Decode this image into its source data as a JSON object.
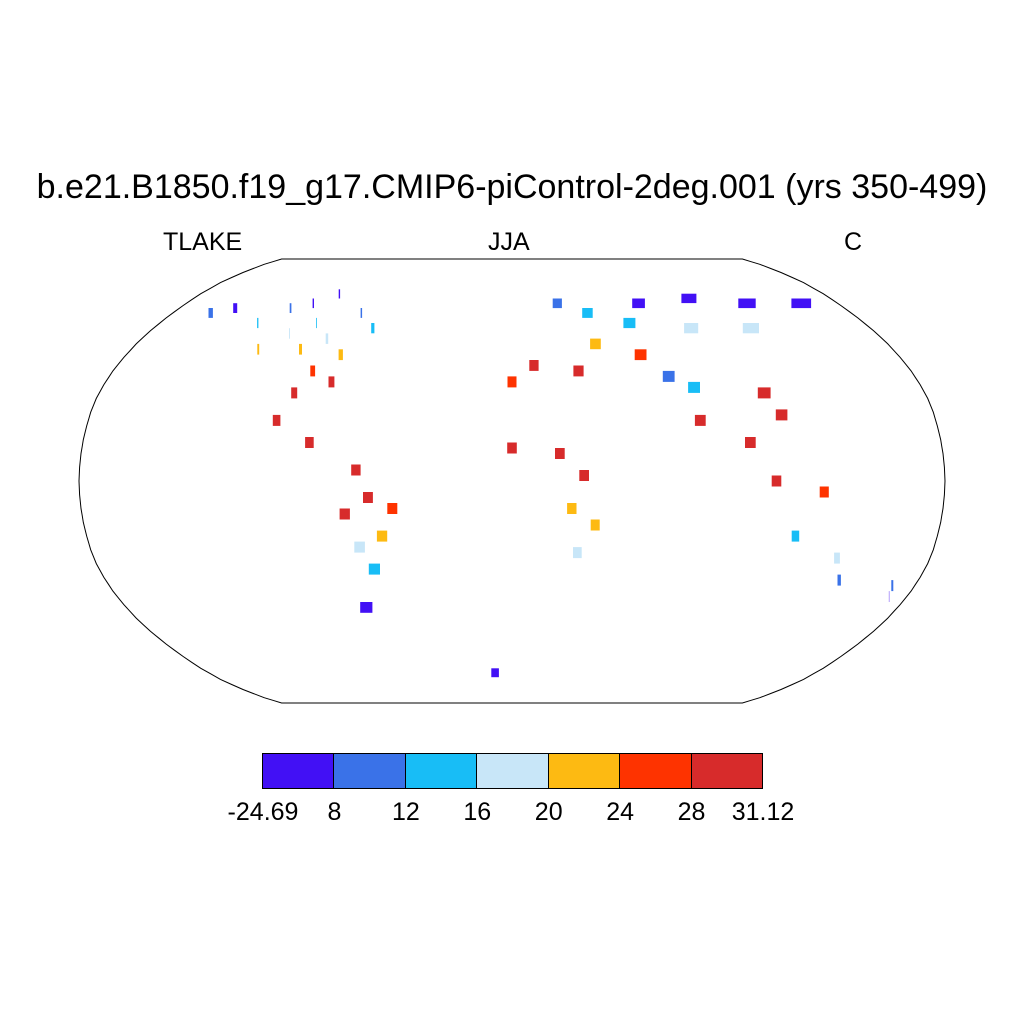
{
  "title": "b.e21.B1850.f19_g17.CMIP6-piControl-2deg.001 (yrs 350-499)",
  "left_label": "TLAKE",
  "center_label": "JJA",
  "right_label": "C",
  "colorbar": {
    "colors": [
      "#4210f5",
      "#3a72e8",
      "#18bdf6",
      "#c8e6f8",
      "#fdba12",
      "#fe3300",
      "#d72b2b"
    ],
    "tick_labels": [
      "-24.69",
      "8",
      "12",
      "16",
      "20",
      "24",
      "28",
      "31.12"
    ]
  },
  "map": {
    "projection": "robinson",
    "cells": [
      {
        "lon": -100,
        "lat": 70,
        "c": 0
      },
      {
        "lon": -110,
        "lat": 66,
        "c": 0
      },
      {
        "lon": -90,
        "lat": 68,
        "c": 0
      },
      {
        "lon": -120,
        "lat": 64,
        "c": 1
      },
      {
        "lon": -80,
        "lat": 62,
        "c": 1
      },
      {
        "lon": -150,
        "lat": 64,
        "c": 0
      },
      {
        "lon": -160,
        "lat": 62,
        "c": 1
      },
      {
        "lon": -130,
        "lat": 58,
        "c": 2
      },
      {
        "lon": -100,
        "lat": 58,
        "c": 2
      },
      {
        "lon": -70,
        "lat": 56,
        "c": 2
      },
      {
        "lon": -110,
        "lat": 54,
        "c": 3
      },
      {
        "lon": -90,
        "lat": 52,
        "c": 3
      },
      {
        "lon": -120,
        "lat": 48,
        "c": 4
      },
      {
        "lon": -100,
        "lat": 48,
        "c": 4
      },
      {
        "lon": -80,
        "lat": 46,
        "c": 4
      },
      {
        "lon": -90,
        "lat": 40,
        "c": 5
      },
      {
        "lon": -80,
        "lat": 36,
        "c": 6
      },
      {
        "lon": -95,
        "lat": 32,
        "c": 6
      },
      {
        "lon": -100,
        "lat": 22,
        "c": 6
      },
      {
        "lon": -85,
        "lat": 14,
        "c": 6
      },
      {
        "lon": -65,
        "lat": 4,
        "c": 6
      },
      {
        "lon": -60,
        "lat": -6,
        "c": 6
      },
      {
        "lon": -50,
        "lat": -10,
        "c": 5
      },
      {
        "lon": -70,
        "lat": -12,
        "c": 6
      },
      {
        "lon": -55,
        "lat": -20,
        "c": 4
      },
      {
        "lon": -65,
        "lat": -24,
        "c": 3
      },
      {
        "lon": -60,
        "lat": -32,
        "c": 2
      },
      {
        "lon": -68,
        "lat": -46,
        "c": 0
      },
      {
        "lon": 25,
        "lat": 66,
        "c": 1
      },
      {
        "lon": 40,
        "lat": 62,
        "c": 2
      },
      {
        "lon": 70,
        "lat": 66,
        "c": 0
      },
      {
        "lon": 100,
        "lat": 68,
        "c": 0
      },
      {
        "lon": 130,
        "lat": 66,
        "c": 0
      },
      {
        "lon": 160,
        "lat": 66,
        "c": 0
      },
      {
        "lon": 60,
        "lat": 58,
        "c": 2
      },
      {
        "lon": 90,
        "lat": 56,
        "c": 3
      },
      {
        "lon": 120,
        "lat": 56,
        "c": 3
      },
      {
        "lon": 40,
        "lat": 50,
        "c": 4
      },
      {
        "lon": 60,
        "lat": 46,
        "c": 5
      },
      {
        "lon": 10,
        "lat": 42,
        "c": 6
      },
      {
        "lon": 0,
        "lat": 36,
        "c": 5
      },
      {
        "lon": 30,
        "lat": 40,
        "c": 6
      },
      {
        "lon": 70,
        "lat": 38,
        "c": 1
      },
      {
        "lon": 80,
        "lat": 34,
        "c": 2
      },
      {
        "lon": 110,
        "lat": 32,
        "c": 6
      },
      {
        "lon": 115,
        "lat": 24,
        "c": 6
      },
      {
        "lon": 80,
        "lat": 22,
        "c": 6
      },
      {
        "lon": 100,
        "lat": 14,
        "c": 6
      },
      {
        "lon": 110,
        "lat": 0,
        "c": 6
      },
      {
        "lon": 130,
        "lat": -4,
        "c": 5
      },
      {
        "lon": 20,
        "lat": 10,
        "c": 6
      },
      {
        "lon": 0,
        "lat": 12,
        "c": 6
      },
      {
        "lon": 30,
        "lat": 2,
        "c": 6
      },
      {
        "lon": 25,
        "lat": -10,
        "c": 4
      },
      {
        "lon": 35,
        "lat": -16,
        "c": 4
      },
      {
        "lon": 28,
        "lat": -26,
        "c": 3
      },
      {
        "lon": 120,
        "lat": -20,
        "c": 2
      },
      {
        "lon": 140,
        "lat": -28,
        "c": 3
      },
      {
        "lon": 145,
        "lat": -36,
        "c": 1
      },
      {
        "lon": 172,
        "lat": -42,
        "c": 0
      },
      {
        "lon": 170,
        "lat": -38,
        "c": 1
      },
      {
        "lon": -10,
        "lat": -72,
        "c": 0
      }
    ]
  }
}
